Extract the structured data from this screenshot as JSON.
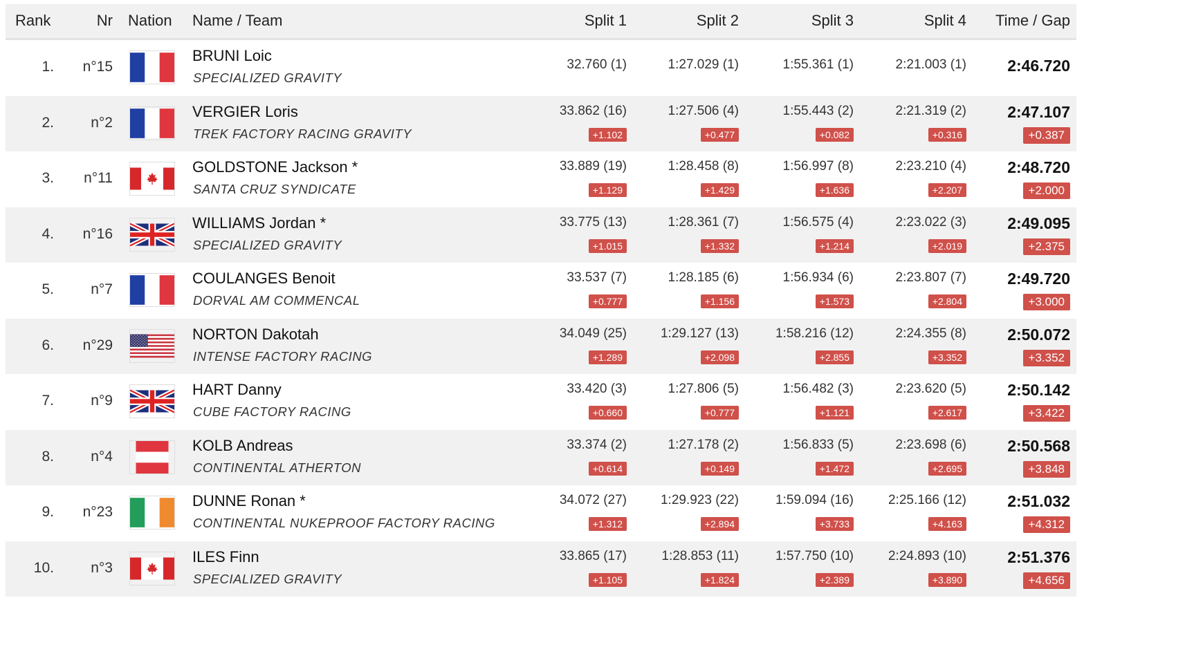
{
  "header": {
    "rank": "Rank",
    "nr": "Nr",
    "nation": "Nation",
    "name_team": "Name / Team",
    "split1": "Split 1",
    "split2": "Split 2",
    "split3": "Split 3",
    "split4": "Split 4",
    "time_gap": "Time / Gap"
  },
  "rows": [
    {
      "rank": "1.",
      "nr": "n°15",
      "nation": "France",
      "name": "BRUNI Loic",
      "team": "SPECIALIZED GRAVITY",
      "s1": "32.760 (1)",
      "s1_gap": "",
      "s2": "1:27.029 (1)",
      "s2_gap": "",
      "s3": "1:55.361 (1)",
      "s3_gap": "",
      "s4": "2:21.003 (1)",
      "s4_gap": "",
      "time": "2:46.720",
      "gap": ""
    },
    {
      "rank": "2.",
      "nr": "n°2",
      "nation": "France",
      "name": "VERGIER Loris",
      "team": "TREK FACTORY RACING GRAVITY",
      "s1": "33.862 (16)",
      "s1_gap": "+1.102",
      "s2": "1:27.506 (4)",
      "s2_gap": "+0.477",
      "s3": "1:55.443 (2)",
      "s3_gap": "+0.082",
      "s4": "2:21.319 (2)",
      "s4_gap": "+0.316",
      "time": "2:47.107",
      "gap": "+0.387"
    },
    {
      "rank": "3.",
      "nr": "n°11",
      "nation": "Canada",
      "name": "GOLDSTONE Jackson *",
      "team": "SANTA CRUZ SYNDICATE",
      "s1": "33.889 (19)",
      "s1_gap": "+1.129",
      "s2": "1:28.458 (8)",
      "s2_gap": "+1.429",
      "s3": "1:56.997 (8)",
      "s3_gap": "+1.636",
      "s4": "2:23.210 (4)",
      "s4_gap": "+2.207",
      "time": "2:48.720",
      "gap": "+2.000"
    },
    {
      "rank": "4.",
      "nr": "n°16",
      "nation": "Great Britain",
      "name": "WILLIAMS Jordan *",
      "team": "SPECIALIZED GRAVITY",
      "s1": "33.775 (13)",
      "s1_gap": "+1.015",
      "s2": "1:28.361 (7)",
      "s2_gap": "+1.332",
      "s3": "1:56.575 (4)",
      "s3_gap": "+1.214",
      "s4": "2:23.022 (3)",
      "s4_gap": "+2.019",
      "time": "2:49.095",
      "gap": "+2.375"
    },
    {
      "rank": "5.",
      "nr": "n°7",
      "nation": "France",
      "name": "COULANGES Benoit",
      "team": "DORVAL AM COMMENCAL",
      "s1": "33.537 (7)",
      "s1_gap": "+0.777",
      "s2": "1:28.185 (6)",
      "s2_gap": "+1.156",
      "s3": "1:56.934 (6)",
      "s3_gap": "+1.573",
      "s4": "2:23.807 (7)",
      "s4_gap": "+2.804",
      "time": "2:49.720",
      "gap": "+3.000"
    },
    {
      "rank": "6.",
      "nr": "n°29",
      "nation": "USA",
      "name": "NORTON Dakotah",
      "team": "INTENSE FACTORY RACING",
      "s1": "34.049 (25)",
      "s1_gap": "+1.289",
      "s2": "1:29.127 (13)",
      "s2_gap": "+2.098",
      "s3": "1:58.216 (12)",
      "s3_gap": "+2.855",
      "s4": "2:24.355 (8)",
      "s4_gap": "+3.352",
      "time": "2:50.072",
      "gap": "+3.352"
    },
    {
      "rank": "7.",
      "nr": "n°9",
      "nation": "Great Britain",
      "name": "HART Danny",
      "team": "CUBE FACTORY RACING",
      "s1": "33.420 (3)",
      "s1_gap": "+0.660",
      "s2": "1:27.806 (5)",
      "s2_gap": "+0.777",
      "s3": "1:56.482 (3)",
      "s3_gap": "+1.121",
      "s4": "2:23.620 (5)",
      "s4_gap": "+2.617",
      "time": "2:50.142",
      "gap": "+3.422"
    },
    {
      "rank": "8.",
      "nr": "n°4",
      "nation": "Austria",
      "name": "KOLB Andreas",
      "team": "CONTINENTAL ATHERTON",
      "s1": "33.374 (2)",
      "s1_gap": "+0.614",
      "s2": "1:27.178 (2)",
      "s2_gap": "+0.149",
      "s3": "1:56.833 (5)",
      "s3_gap": "+1.472",
      "s4": "2:23.698 (6)",
      "s4_gap": "+2.695",
      "time": "2:50.568",
      "gap": "+3.848"
    },
    {
      "rank": "9.",
      "nr": "n°23",
      "nation": "Ireland",
      "name": "DUNNE Ronan *",
      "team": "CONTINENTAL NUKEPROOF FACTORY RACING",
      "s1": "34.072 (27)",
      "s1_gap": "+1.312",
      "s2": "1:29.923 (22)",
      "s2_gap": "+2.894",
      "s3": "1:59.094 (16)",
      "s3_gap": "+3.733",
      "s4": "2:25.166 (12)",
      "s4_gap": "+4.163",
      "time": "2:51.032",
      "gap": "+4.312"
    },
    {
      "rank": "10.",
      "nr": "n°3",
      "nation": "Canada",
      "name": "ILES Finn",
      "team": "SPECIALIZED GRAVITY",
      "s1": "33.865 (17)",
      "s1_gap": "+1.105",
      "s2": "1:28.853 (11)",
      "s2_gap": "+1.824",
      "s3": "1:57.750 (10)",
      "s3_gap": "+2.389",
      "s4": "2:24.893 (10)",
      "s4_gap": "+3.890",
      "time": "2:51.376",
      "gap": "+4.656"
    }
  ],
  "colors": {
    "gap_badge": "#d0504a",
    "row_alt": "#f1f1f1"
  }
}
